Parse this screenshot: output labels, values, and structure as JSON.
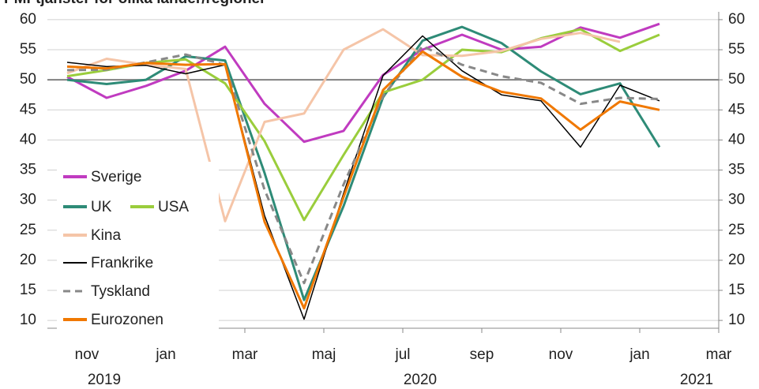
{
  "chart_data": {
    "type": "line",
    "title": "PMI-tjänster för olika länder/regioner",
    "x": [
      "2019-10",
      "2019-11",
      "2019-12",
      "2020-01",
      "2020-02",
      "2020-03",
      "2020-04",
      "2020-05",
      "2020-06",
      "2020-07",
      "2020-08",
      "2020-09",
      "2020-10",
      "2020-11",
      "2020-12",
      "2021-01"
    ],
    "xlim": [
      "2019-10",
      "2021-03"
    ],
    "xticks": [
      {
        "value": "2019-11",
        "label": "nov"
      },
      {
        "value": "2020-01",
        "label": "jan"
      },
      {
        "value": "2020-03",
        "label": "mar"
      },
      {
        "value": "2020-05",
        "label": "maj"
      },
      {
        "value": "2020-07",
        "label": "jul"
      },
      {
        "value": "2020-09",
        "label": "sep"
      },
      {
        "value": "2020-11",
        "label": "nov"
      },
      {
        "value": "2021-01",
        "label": "jan"
      },
      {
        "value": "2021-03",
        "label": "mar"
      }
    ],
    "year_labels": [
      {
        "value": "2019-11",
        "label": "2019"
      },
      {
        "value": "2020-07",
        "label": "2020"
      },
      {
        "value": "2021-02",
        "label": "2021"
      }
    ],
    "ylim": [
      8.7,
      61.3
    ],
    "yticks": [
      10,
      15,
      20,
      25,
      30,
      35,
      40,
      45,
      50,
      55,
      60
    ],
    "y2lim": [
      8.7,
      61.3
    ],
    "y2ticks": [
      10,
      15,
      20,
      25,
      30,
      35,
      40,
      45,
      50,
      55,
      60
    ],
    "reference_line": 50,
    "grid": true,
    "legend": "lower left",
    "series": [
      {
        "name": "Sverige",
        "color": "#c03bc0",
        "linewidth": 3,
        "values": [
          50.5,
          47,
          49,
          51.5,
          55.5,
          46,
          39.7,
          41.5,
          50.8,
          55,
          57.5,
          55,
          55.5,
          58.7,
          57,
          59.3
        ]
      },
      {
        "name": "UK",
        "color": "#2e8b77",
        "linewidth": 3,
        "values": [
          50,
          49.3,
          50,
          53.9,
          53.2,
          34.5,
          13.4,
          29,
          47.1,
          56.5,
          58.8,
          56.1,
          51.4,
          47.6,
          49.4,
          38.8
        ]
      },
      {
        "name": "USA",
        "color": "#9acd3c",
        "linewidth": 3,
        "values": [
          50.6,
          51.6,
          52.8,
          53.4,
          49.4,
          39.8,
          26.7,
          37.5,
          47.9,
          50,
          55,
          54.6,
          56.9,
          58.4,
          54.8,
          57.5
        ]
      },
      {
        "name": "Kina",
        "color": "#f5c5a8",
        "linewidth": 3,
        "values": [
          51.1,
          53.5,
          52.5,
          51.8,
          26.5,
          43,
          44.4,
          55,
          58.4,
          54.1,
          54,
          54.8,
          56.8,
          57.8,
          56.3,
          null
        ]
      },
      {
        "name": "Frankrike",
        "color": "#000000",
        "linewidth": 1.5,
        "values": [
          52.9,
          52.2,
          52.4,
          51,
          52.5,
          27.4,
          10.2,
          31.1,
          50.7,
          57.3,
          51.5,
          47.5,
          46.5,
          38.8,
          49.1,
          46.5
        ]
      },
      {
        "name": "Tyskland",
        "color": "#888888",
        "linewidth": 3,
        "dashed": true,
        "values": [
          51.6,
          51.7,
          52.9,
          54.2,
          52.5,
          31.7,
          16.2,
          32.6,
          47.3,
          55.6,
          52.5,
          50.6,
          49.5,
          46,
          47,
          46.8
        ]
      },
      {
        "name": "Eurozonen",
        "color": "#f07800",
        "linewidth": 3,
        "values": [
          52.2,
          51.9,
          52.8,
          52.5,
          52.6,
          26.4,
          12,
          30.5,
          48.3,
          54.7,
          50.5,
          48,
          46.9,
          41.7,
          46.4,
          45
        ]
      }
    ]
  }
}
